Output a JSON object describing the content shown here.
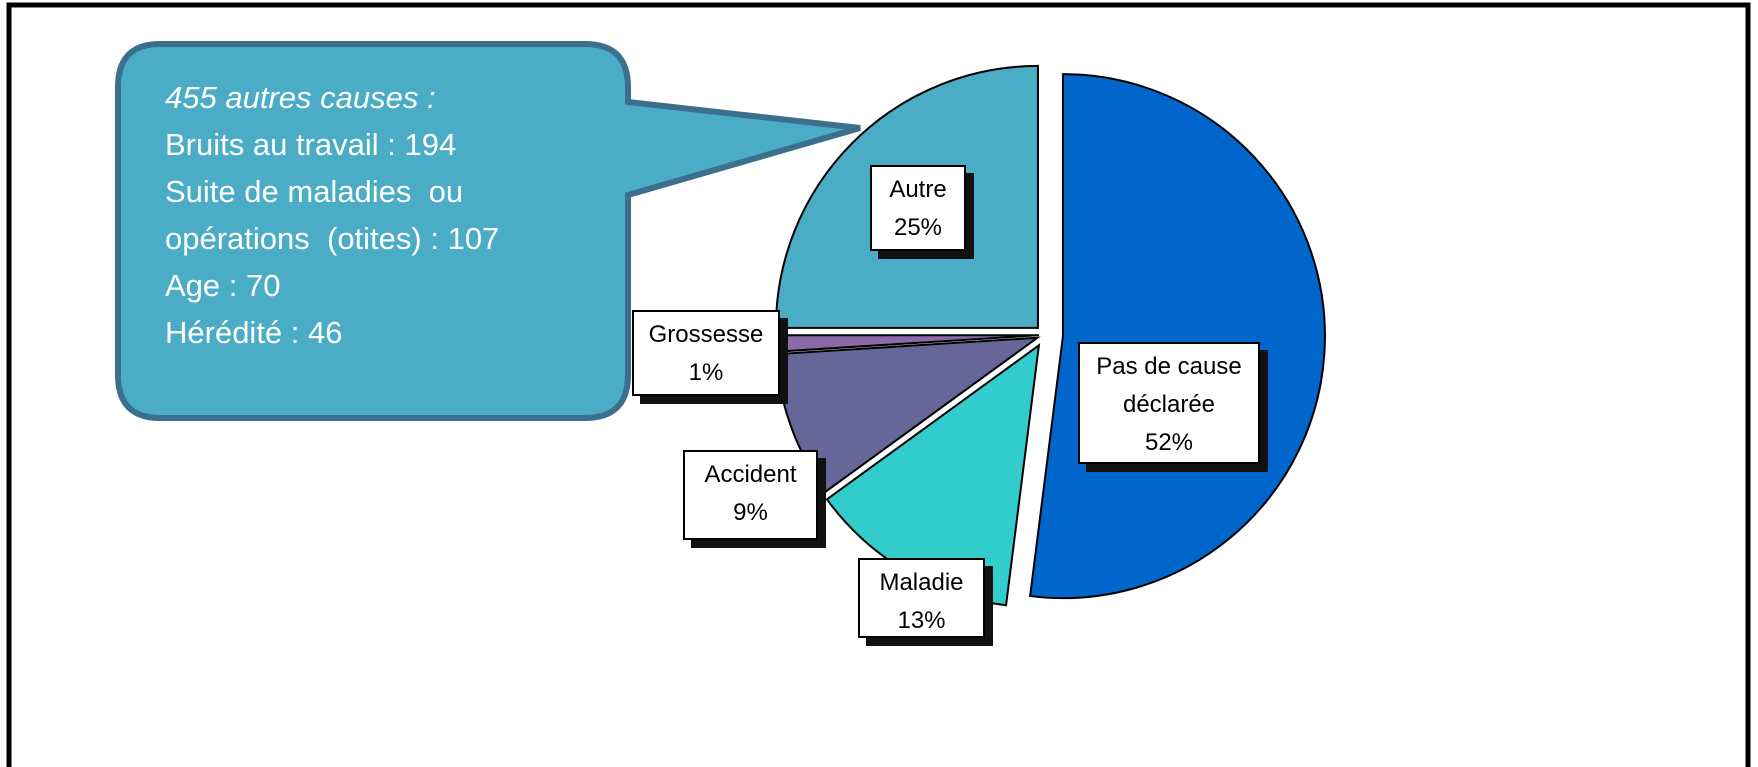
{
  "chart_data": {
    "type": "pie",
    "categories": [
      "Pas de cause déclarée",
      "Maladie",
      "Accident",
      "Grossesse",
      "Autre"
    ],
    "values": [
      52,
      13,
      9,
      1,
      25
    ],
    "value_labels": [
      "52%",
      "13%",
      "9%",
      "1%",
      "25%"
    ],
    "colors": [
      "#0066cc",
      "#33cccc",
      "#666699",
      "#8a6aa8",
      "#4bacc6"
    ],
    "annotation": {
      "lines": [
        "455 autres causes :",
        "Bruits au travail : 194",
        "Suite de maladies  ou",
        "opérations  (otites) : 107",
        "Age : 70",
        "Hérédité : 46"
      ]
    }
  }
}
